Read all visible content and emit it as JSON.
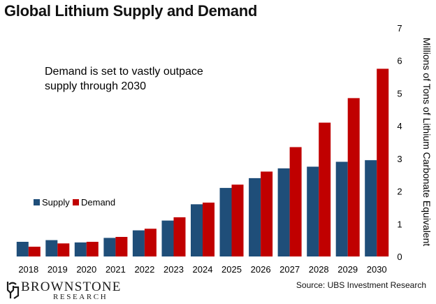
{
  "title": "Global Lithium Supply and Demand",
  "source": "Source: UBS Investment Research",
  "logo": {
    "main": "BROWNSTONE",
    "sub": "RESEARCH"
  },
  "colors": {
    "supply": "#1F4E79",
    "demand": "#C00000"
  },
  "chart_data": {
    "type": "bar",
    "title": "Global Lithium Supply and Demand",
    "annotation": "Demand is set to vastly outpace supply through 2030",
    "annotation_lines": [
      "Demand is set to vastly outpace",
      "supply through 2030"
    ],
    "ylabel": "Millions of Tons of Lithium Carbonate Equivalent",
    "xlabel": "",
    "ylim": [
      0,
      7
    ],
    "yticks": [
      0,
      1,
      2,
      3,
      4,
      5,
      6,
      7
    ],
    "y_axis_side": "right",
    "grid": false,
    "legend_position": "left",
    "categories": [
      "2018",
      "2019",
      "2020",
      "2021",
      "2022",
      "2023",
      "2024",
      "2025",
      "2026",
      "2027",
      "2028",
      "2029",
      "2030"
    ],
    "series": [
      {
        "name": "Supply",
        "color": "#1F4E79",
        "values": [
          0.45,
          0.5,
          0.43,
          0.57,
          0.8,
          1.1,
          1.6,
          2.1,
          2.4,
          2.7,
          2.75,
          2.9,
          2.95
        ]
      },
      {
        "name": "Demand",
        "color": "#C00000",
        "values": [
          0.3,
          0.4,
          0.45,
          0.6,
          0.85,
          1.2,
          1.65,
          2.2,
          2.6,
          3.35,
          4.1,
          4.85,
          5.75
        ]
      }
    ]
  }
}
